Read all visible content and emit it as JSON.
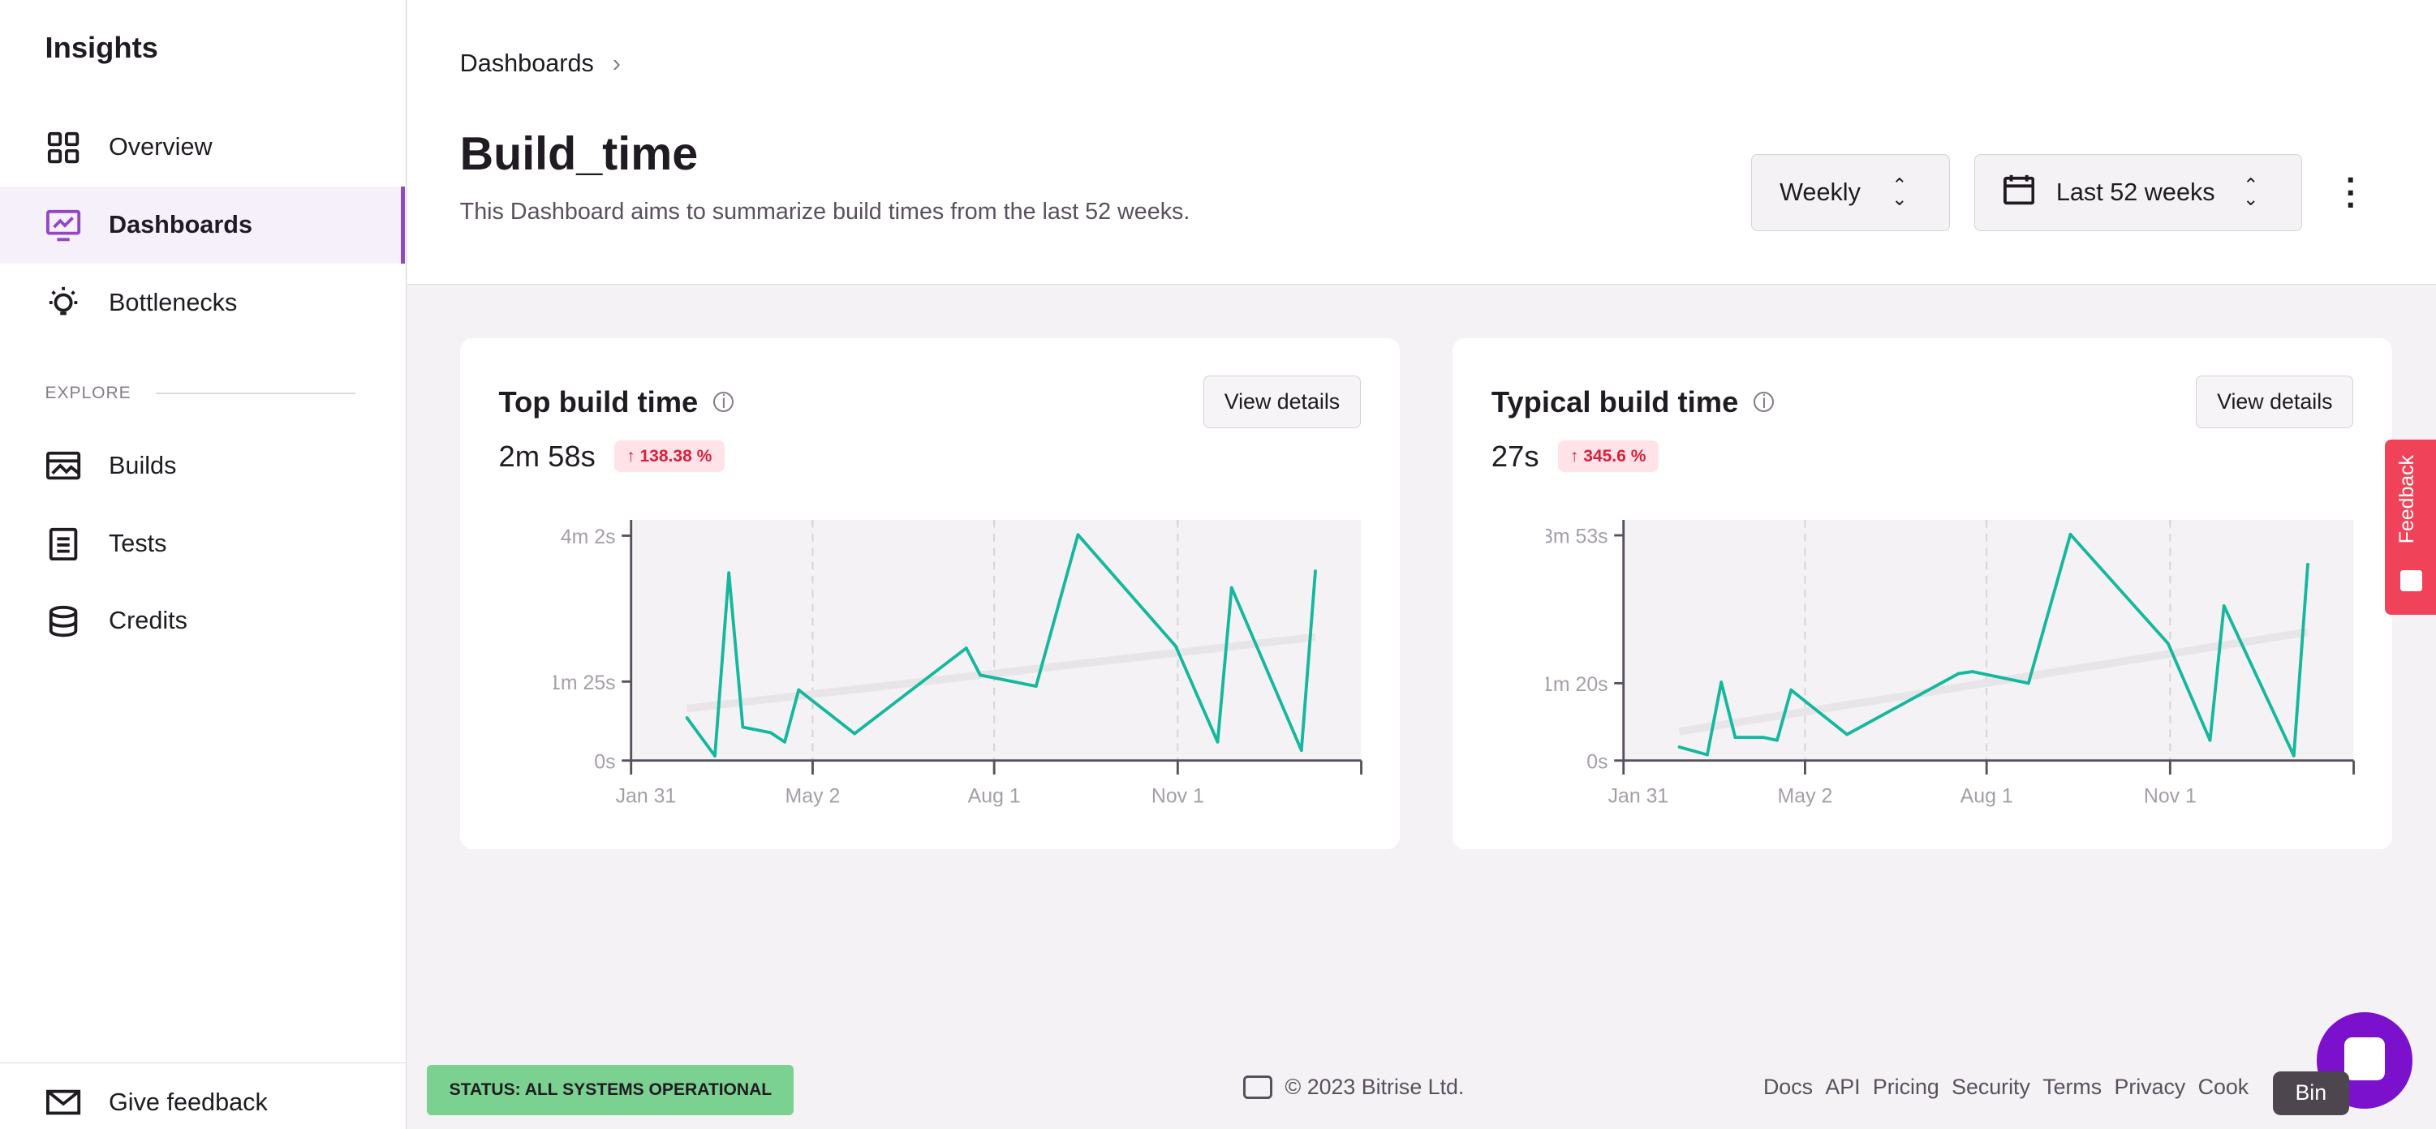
{
  "sidebar": {
    "title": "Insights",
    "items": [
      {
        "label": "Overview",
        "icon": "grid-icon"
      },
      {
        "label": "Dashboards",
        "icon": "chart-monitor-icon",
        "active": true
      },
      {
        "label": "Bottlenecks",
        "icon": "lightbulb-icon"
      }
    ],
    "section": "EXPLORE",
    "explore_items": [
      {
        "label": "Builds",
        "icon": "builds-icon"
      },
      {
        "label": "Tests",
        "icon": "clipboard-icon"
      },
      {
        "label": "Credits",
        "icon": "database-icon"
      }
    ],
    "feedback": "Give feedback"
  },
  "header": {
    "breadcrumb": "Dashboards",
    "title": "Build_time",
    "description": "This Dashboard aims to summarize build times from the last 52 weeks.",
    "interval": "Weekly",
    "range": "Last 52 weeks"
  },
  "colors": {
    "line": "#14b89c",
    "trend": "#e8e5e9",
    "badge_text": "#d5223d",
    "badge_bg": "#ffe3e8",
    "accent": "#9247c6",
    "feedback_tab": "#f0435a",
    "status": "#7bd190",
    "chat": "#7b11cc"
  },
  "cards": [
    {
      "title": "Top build time",
      "button": "View details",
      "value": "2m 58s",
      "change": "138.38 %"
    },
    {
      "title": "Typical build time",
      "button": "View details",
      "value": "27s",
      "change": "345.6 %"
    }
  ],
  "chart_data": [
    {
      "type": "line",
      "x_ticks": [
        "Jan 31",
        "May 2",
        "Aug 1",
        "Nov 1"
      ],
      "y_ticks": [
        {
          "value": 0,
          "label": "0s"
        },
        {
          "value": 85,
          "label": "1m 25s"
        },
        {
          "value": 242,
          "label": "4m 2s"
        }
      ],
      "ylim": [
        0,
        259
      ],
      "grid": "vertical dashed",
      "x": [
        "Feb 28",
        "Mar 14",
        "Mar 21",
        "Mar 28",
        "Apr 11",
        "Apr 18",
        "Apr 25",
        "May 23",
        "Jul 18",
        "Jul 25",
        "Aug 22",
        "Sep 12",
        "Oct 31",
        "Nov 21",
        "Nov 28",
        "Jan 2",
        "Jan 9"
      ],
      "y": [
        46,
        5,
        202,
        36,
        30,
        20,
        76,
        29,
        121,
        92,
        80,
        243,
        123,
        20,
        186,
        11,
        204
      ],
      "trend": [
        56,
        133
      ]
    },
    {
      "type": "line",
      "x_ticks": [
        "Jan 31",
        "May 2",
        "Aug 1",
        "Nov 1"
      ],
      "y_ticks": [
        {
          "value": 0,
          "label": "0s"
        },
        {
          "value": 80,
          "label": "1m 20s"
        },
        {
          "value": 233,
          "label": "3m 53s"
        }
      ],
      "ylim": [
        0,
        249
      ],
      "grid": "vertical dashed",
      "x": [
        "Feb 28",
        "Mar 14",
        "Mar 21",
        "Mar 28",
        "Apr 11",
        "Apr 18",
        "Apr 25",
        "May 23",
        "Jul 18",
        "Jul 25",
        "Aug 22",
        "Sep 12",
        "Oct 31",
        "Nov 21",
        "Nov 28",
        "Jan 2",
        "Jan 9"
      ],
      "y": [
        14,
        6,
        81,
        24,
        24,
        21,
        73,
        27,
        90,
        92,
        80,
        234,
        121,
        21,
        160,
        5,
        203
      ],
      "trend": [
        30,
        133
      ]
    }
  ],
  "feedback_tab": "Feedback",
  "footer": {
    "status": "STATUS: ALL SYSTEMS OPERATIONAL",
    "copyright": "© 2023 Bitrise Ltd.",
    "links": [
      "Docs",
      "API",
      "Pricing",
      "Security",
      "Terms",
      "Privacy",
      "Cook"
    ],
    "tooltip": "Bin"
  }
}
